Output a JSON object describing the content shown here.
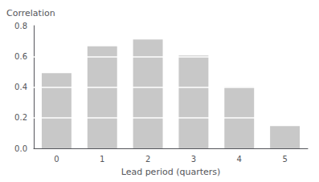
{
  "chart_data": {
    "type": "bar",
    "categories": [
      "0",
      "1",
      "2",
      "3",
      "4",
      "5"
    ],
    "values": [
      0.49,
      0.665,
      0.71,
      0.605,
      0.4,
      0.145
    ],
    "color": "#c8c8c8",
    "xlabel": "Lead period (quarters)",
    "ylabel": "Correlation",
    "ylim": [
      0.0,
      0.8
    ],
    "yticks": [
      {
        "value": 0,
        "label": "0.0"
      },
      0.2,
      0.4,
      0.6,
      0.8
    ],
    "grid": true
  }
}
